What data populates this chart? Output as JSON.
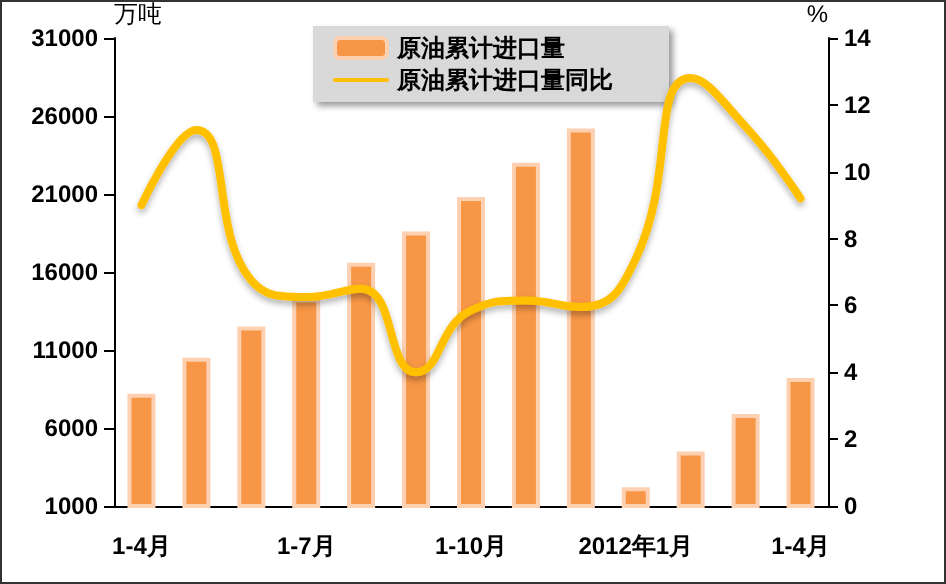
{
  "chart_data": {
    "type": "bar",
    "categories": [
      "1-4月",
      null,
      null,
      "1-7月",
      null,
      null,
      "1-10月",
      null,
      null,
      "2012年1月",
      null,
      null,
      "1-4月"
    ],
    "series": [
      {
        "name": "原油累计进口量",
        "color": "#f79646",
        "values": [
          8200,
          10500,
          12500,
          14300,
          16600,
          18600,
          20800,
          23000,
          25200,
          2200,
          4500,
          6900,
          9200
        ]
      },
      {
        "name": "原油累计进口量同比",
        "type": "line",
        "axis": "y2",
        "color": "#ffc000",
        "values": [
          9.0,
          11.25,
          6.75,
          6.25,
          6.5,
          4.0,
          5.85,
          6.15,
          5.95,
          7.4,
          12.8,
          11.35,
          9.2
        ]
      }
    ],
    "ylabel": "万吨",
    "y2label": "%",
    "ylim": [
      1000,
      31000
    ],
    "yticks": [
      1000,
      6000,
      11000,
      16000,
      21000,
      26000,
      31000
    ],
    "y2lim": [
      0,
      14
    ],
    "y2ticks": [
      0,
      2,
      4,
      6,
      8,
      10,
      12,
      14
    ],
    "legend": "top",
    "marker": "none"
  }
}
